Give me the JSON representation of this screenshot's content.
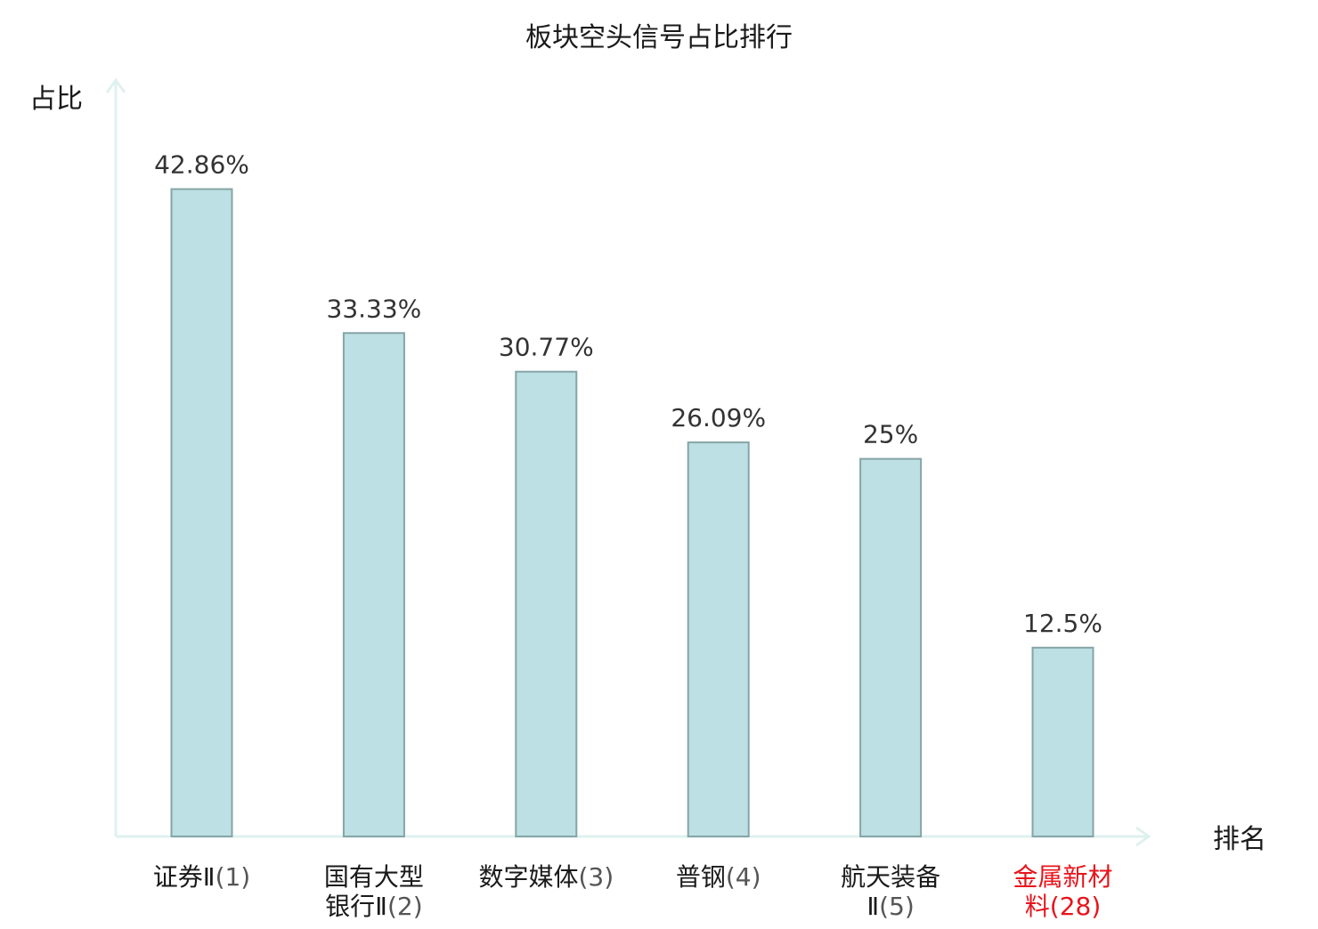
{
  "chart_data": {
    "type": "bar",
    "title": "板块空头信号占比排行",
    "ylabel": "占比",
    "xlabel": "排名",
    "categories": [
      {
        "name_lines": [
          "证券Ⅱ"
        ],
        "rank": "(1)",
        "highlight": false
      },
      {
        "name_lines": [
          "国有大型",
          "银行Ⅱ"
        ],
        "rank": "(2)",
        "highlight": false
      },
      {
        "name_lines": [
          "数字媒体"
        ],
        "rank": "(3)",
        "highlight": false
      },
      {
        "name_lines": [
          "普钢"
        ],
        "rank": "(4)",
        "highlight": false
      },
      {
        "name_lines": [
          "航天装备",
          "Ⅱ"
        ],
        "rank": "(5)",
        "highlight": false
      },
      {
        "name_lines": [
          "金属新材",
          "料"
        ],
        "rank": "(28)",
        "highlight": true
      }
    ],
    "values": [
      42.86,
      33.33,
      30.77,
      26.09,
      25,
      12.5
    ],
    "value_labels": [
      "42.86%",
      "33.33%",
      "30.77%",
      "26.09%",
      "25%",
      "12.5%"
    ],
    "ylim": [
      0,
      50
    ],
    "grid": false,
    "legend": "none",
    "colors": {
      "bar_fill": "#bce0e3",
      "bar_stroke": "#86a4a6",
      "axis": "#dff1ef",
      "text": "#1a1a1a",
      "value_text": "#333333",
      "rank_text": "#555555",
      "highlight": "#e8141c"
    }
  }
}
